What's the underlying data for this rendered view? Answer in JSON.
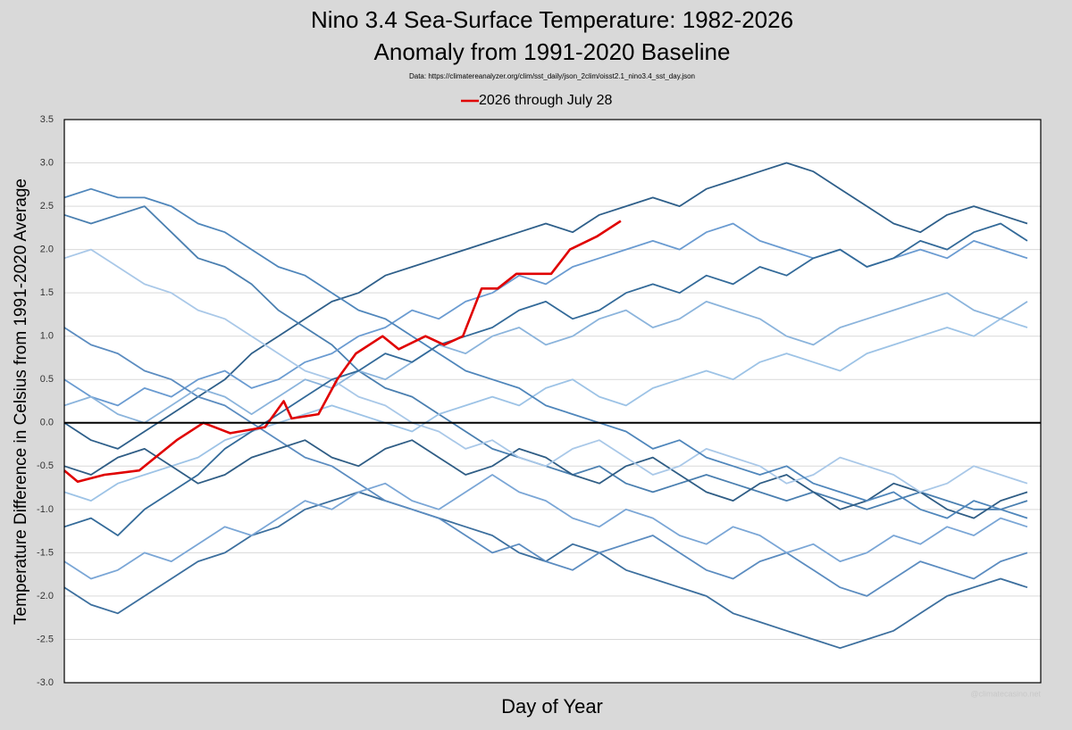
{
  "chart_data": {
    "type": "line",
    "title": [
      "Nino 3.4 Sea-Surface Temperature: 1982-2026",
      "Anomaly from 1991-2020 Baseline"
    ],
    "subtitle": "Data: https://climatereanalyzer.org/clim/sst_daily/json_2clim/oisst2.1_nino3.4_sst_day.json",
    "y_label": "Temperature Difference in Celsius from 1991-2020 Average",
    "x_label": "Day of Year",
    "watermark": "@climatecasino.net",
    "legend": "top",
    "grid": true,
    "xlim": [
      1,
      366
    ],
    "ylim": [
      -3,
      3.5
    ],
    "yticks": [
      3.5,
      {
        "value": 3,
        "label": "3.0"
      },
      2.5,
      {
        "value": 2,
        "label": "2.0"
      },
      1.5,
      {
        "value": 1,
        "label": "1.0"
      },
      0.5,
      {
        "value": 0,
        "label": "0.0"
      },
      -0.5,
      {
        "value": -1,
        "label": "-1.0"
      },
      -1.5,
      {
        "value": -2,
        "label": "-2.0"
      },
      -2.5,
      {
        "value": -3,
        "label": "-3.0"
      }
    ],
    "x": [
      1,
      11,
      21,
      31,
      41,
      51,
      61,
      71,
      81,
      91,
      101,
      111,
      121,
      131,
      141,
      151,
      161,
      171,
      181,
      191,
      201,
      211,
      221,
      231,
      241,
      251,
      261,
      271,
      281,
      291,
      301,
      311,
      321,
      331,
      341,
      351,
      361
    ],
    "series": [
      {
        "name": "2026 through July 28",
        "color": "#e00000",
        "x": [
          1,
          6,
          16,
          29,
          43,
          53,
          63,
          76,
          83,
          86,
          96,
          103,
          110,
          120,
          126,
          136,
          143,
          150,
          157,
          163,
          170,
          183,
          190,
          200,
          209
        ],
        "values": [
          -0.55,
          -0.68,
          -0.6,
          -0.55,
          -0.2,
          0.0,
          -0.12,
          -0.05,
          0.25,
          0.05,
          0.1,
          0.5,
          0.8,
          1.0,
          0.85,
          1.0,
          0.9,
          1.0,
          1.55,
          1.55,
          1.72,
          1.72,
          2.0,
          2.15,
          2.33
        ]
      },
      {
        "color": "#2e5f8a",
        "values": [
          0.0,
          -0.2,
          -0.3,
          -0.1,
          0.1,
          0.3,
          0.5,
          0.8,
          1.0,
          1.2,
          1.4,
          1.5,
          1.7,
          1.8,
          1.9,
          2.0,
          2.1,
          2.2,
          2.3,
          2.2,
          2.4,
          2.5,
          2.6,
          2.5,
          2.7,
          2.8,
          2.9,
          3.0,
          2.9,
          2.7,
          2.5,
          2.3,
          2.2,
          2.4,
          2.5,
          2.4,
          2.3
        ]
      },
      {
        "color": "#4a7fb0",
        "values": [
          2.4,
          2.3,
          2.4,
          2.5,
          2.2,
          1.9,
          1.8,
          1.6,
          1.3,
          1.1,
          0.9,
          0.6,
          0.4,
          0.3,
          0.1,
          -0.1,
          -0.3,
          -0.4,
          -0.5,
          -0.6,
          -0.5,
          -0.7,
          -0.8,
          -0.7,
          -0.6,
          -0.7,
          -0.8,
          -0.9,
          -0.8,
          -0.9,
          -1.0,
          -0.9,
          -0.8,
          -0.9,
          -1.0,
          -1.0,
          -0.9
        ]
      },
      {
        "color": "#3c6f9e",
        "values": [
          -1.9,
          -2.1,
          -2.2,
          -2.0,
          -1.8,
          -1.6,
          -1.5,
          -1.3,
          -1.2,
          -1.0,
          -0.9,
          -0.8,
          -0.9,
          -1.0,
          -1.1,
          -1.2,
          -1.3,
          -1.5,
          -1.6,
          -1.4,
          -1.5,
          -1.7,
          -1.8,
          -1.9,
          -2.0,
          -2.2,
          -2.3,
          -2.4,
          -2.5,
          -2.6,
          -2.5,
          -2.4,
          -2.2,
          -2.0,
          -1.9,
          -1.8,
          -1.9
        ]
      },
      {
        "color": "#6a9bd1",
        "values": [
          0.5,
          0.3,
          0.2,
          0.4,
          0.3,
          0.5,
          0.6,
          0.4,
          0.5,
          0.7,
          0.8,
          1.0,
          1.1,
          1.3,
          1.2,
          1.4,
          1.5,
          1.7,
          1.6,
          1.8,
          1.9,
          2.0,
          2.1,
          2.0,
          2.2,
          2.3,
          2.1,
          2.0,
          1.9,
          2.0,
          1.8,
          1.9,
          2.0,
          1.9,
          2.1,
          2.0,
          1.9
        ]
      },
      {
        "color": "#9dc3e6",
        "values": [
          -0.8,
          -0.9,
          -0.7,
          -0.6,
          -0.5,
          -0.4,
          -0.2,
          -0.1,
          0.0,
          0.1,
          0.2,
          0.1,
          0.0,
          -0.1,
          0.1,
          0.2,
          0.3,
          0.2,
          0.4,
          0.5,
          0.3,
          0.2,
          0.4,
          0.5,
          0.6,
          0.5,
          0.7,
          0.8,
          0.7,
          0.6,
          0.8,
          0.9,
          1.0,
          1.1,
          1.0,
          1.2,
          1.1
        ]
      },
      {
        "color": "#5b8cc0",
        "values": [
          1.1,
          0.9,
          0.8,
          0.6,
          0.5,
          0.3,
          0.2,
          0.0,
          -0.2,
          -0.4,
          -0.5,
          -0.7,
          -0.9,
          -1.0,
          -1.1,
          -1.3,
          -1.5,
          -1.4,
          -1.6,
          -1.7,
          -1.5,
          -1.4,
          -1.3,
          -1.5,
          -1.7,
          -1.8,
          -1.6,
          -1.5,
          -1.7,
          -1.9,
          -2.0,
          -1.8,
          -1.6,
          -1.7,
          -1.8,
          -1.6,
          -1.5
        ]
      },
      {
        "color": "#8bb4dc",
        "values": [
          0.2,
          0.3,
          0.1,
          0.0,
          0.2,
          0.4,
          0.3,
          0.1,
          0.3,
          0.5,
          0.4,
          0.6,
          0.5,
          0.7,
          0.9,
          0.8,
          1.0,
          1.1,
          0.9,
          1.0,
          1.2,
          1.3,
          1.1,
          1.2,
          1.4,
          1.3,
          1.2,
          1.0,
          0.9,
          1.1,
          1.2,
          1.3,
          1.4,
          1.5,
          1.3,
          1.2,
          1.4
        ]
      },
      {
        "color": "#2f5d85",
        "values": [
          -0.5,
          -0.6,
          -0.4,
          -0.3,
          -0.5,
          -0.7,
          -0.6,
          -0.4,
          -0.3,
          -0.2,
          -0.4,
          -0.5,
          -0.3,
          -0.2,
          -0.4,
          -0.6,
          -0.5,
          -0.3,
          -0.4,
          -0.6,
          -0.7,
          -0.5,
          -0.4,
          -0.6,
          -0.8,
          -0.9,
          -0.7,
          -0.6,
          -0.8,
          -1.0,
          -0.9,
          -0.7,
          -0.8,
          -1.0,
          -1.1,
          -0.9,
          -0.8
        ]
      },
      {
        "color": "#a9c8e8",
        "values": [
          1.9,
          2.0,
          1.8,
          1.6,
          1.5,
          1.3,
          1.2,
          1.0,
          0.8,
          0.6,
          0.5,
          0.3,
          0.2,
          0.0,
          -0.1,
          -0.3,
          -0.2,
          -0.4,
          -0.5,
          -0.3,
          -0.2,
          -0.4,
          -0.6,
          -0.5,
          -0.3,
          -0.4,
          -0.5,
          -0.7,
          -0.6,
          -0.4,
          -0.5,
          -0.6,
          -0.8,
          -0.7,
          -0.5,
          -0.6,
          -0.7
        ]
      },
      {
        "color": "#4f86bb",
        "values": [
          2.6,
          2.7,
          2.6,
          2.6,
          2.5,
          2.3,
          2.2,
          2.0,
          1.8,
          1.7,
          1.5,
          1.3,
          1.2,
          1.0,
          0.8,
          0.6,
          0.5,
          0.4,
          0.2,
          0.1,
          0.0,
          -0.1,
          -0.3,
          -0.2,
          -0.4,
          -0.5,
          -0.6,
          -0.5,
          -0.7,
          -0.8,
          -0.9,
          -0.8,
          -1.0,
          -1.1,
          -0.9,
          -1.0,
          -1.1
        ]
      },
      {
        "color": "#336a99",
        "values": [
          -1.2,
          -1.1,
          -1.3,
          -1.0,
          -0.8,
          -0.6,
          -0.3,
          -0.1,
          0.1,
          0.3,
          0.5,
          0.6,
          0.8,
          0.7,
          0.9,
          1.0,
          1.1,
          1.3,
          1.4,
          1.2,
          1.3,
          1.5,
          1.6,
          1.5,
          1.7,
          1.6,
          1.8,
          1.7,
          1.9,
          2.0,
          1.8,
          1.9,
          2.1,
          2.0,
          2.2,
          2.3,
          2.1
        ]
      },
      {
        "color": "#7aa6d6",
        "values": [
          -1.6,
          -1.8,
          -1.7,
          -1.5,
          -1.6,
          -1.4,
          -1.2,
          -1.3,
          -1.1,
          -0.9,
          -1.0,
          -0.8,
          -0.7,
          -0.9,
          -1.0,
          -0.8,
          -0.6,
          -0.8,
          -0.9,
          -1.1,
          -1.2,
          -1.0,
          -1.1,
          -1.3,
          -1.4,
          -1.2,
          -1.3,
          -1.5,
          -1.4,
          -1.6,
          -1.5,
          -1.3,
          -1.4,
          -1.2,
          -1.3,
          -1.1,
          -1.2
        ]
      }
    ]
  }
}
